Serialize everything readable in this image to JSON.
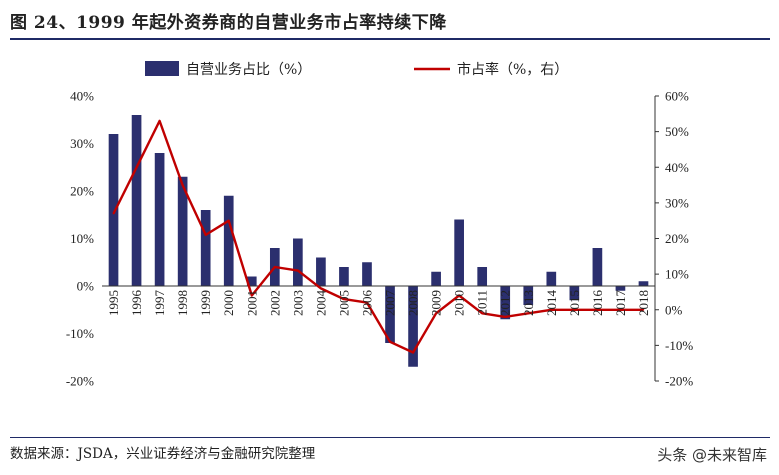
{
  "title": "图 24、1999 年起外资券商的自营业务市占率持续下降",
  "source": "数据来源：JSDA，兴业证券经济与金融研究院整理",
  "watermark": "头条 @未来智库",
  "colors": {
    "bar": "#2b2f6e",
    "line": "#c00000",
    "rule": "#1f2a66"
  },
  "chart_data": {
    "type": "bar+line",
    "categories": [
      "1995",
      "1996",
      "1997",
      "1998",
      "1999",
      "2000",
      "2001",
      "2002",
      "2003",
      "2004",
      "2005",
      "2006",
      "2007",
      "2008",
      "2009",
      "2010",
      "2011",
      "2012",
      "2013",
      "2014",
      "2015",
      "2016",
      "2017",
      "2018"
    ],
    "series": [
      {
        "name": "自营业务占比（%）",
        "type": "bar",
        "axis": "left",
        "values": [
          32,
          36,
          28,
          23,
          16,
          19,
          2,
          8,
          10,
          6,
          4,
          5,
          -12,
          -17,
          3,
          14,
          4,
          -7,
          -4,
          3,
          -3,
          8,
          -1,
          1
        ]
      },
      {
        "name": "市占率（%，右）",
        "type": "line",
        "axis": "right",
        "values": [
          27,
          40,
          53,
          35,
          21,
          25,
          4,
          12,
          11,
          6,
          3,
          2,
          -9,
          -12,
          -1,
          4,
          -1,
          -2,
          -1,
          0,
          0,
          0,
          0,
          0
        ]
      }
    ],
    "left_axis": {
      "min": -20,
      "max": 40,
      "step": 10,
      "tick_labels": [
        "-20%",
        "-10%",
        "0%",
        "10%",
        "20%",
        "30%",
        "40%"
      ]
    },
    "right_axis": {
      "min": -20,
      "max": 60,
      "step": 10,
      "tick_labels": [
        "-20%",
        "-10%",
        "0%",
        "10%",
        "20%",
        "30%",
        "40%",
        "50%",
        "60%"
      ]
    },
    "grid": false,
    "legend_position": "top"
  }
}
